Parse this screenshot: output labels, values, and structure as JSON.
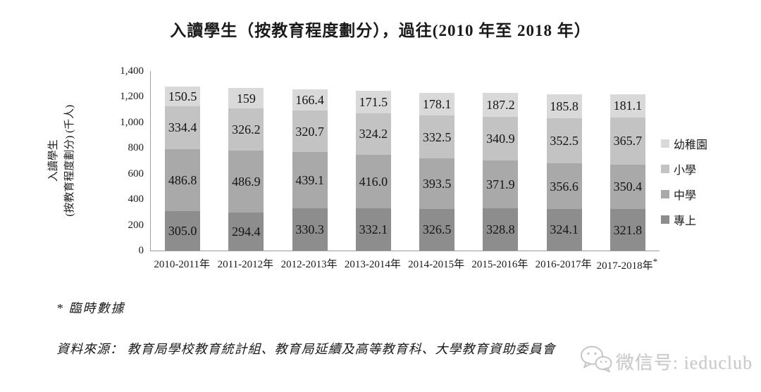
{
  "chart_data": {
    "type": "bar",
    "stacked": true,
    "title": "入讀學生（按教育程度劃分），過往(2010 年至 2018 年）",
    "ylabel": [
      "入讀學生",
      "(按教育程度劃分) (千人)"
    ],
    "ylim": [
      0,
      1400
    ],
    "grid": false,
    "yticks": [
      "0",
      "200",
      "400",
      "600",
      "800",
      "1,000",
      "1,200",
      "1,400"
    ],
    "categories": [
      "2010-2011年",
      "2011-2012年",
      "2012-2013年",
      "2013-2014年",
      "2014-2015年",
      "2015-2016年",
      "2016-2017年",
      "2017-2018年"
    ],
    "category_note": {
      "index": 7,
      "mark": "*"
    },
    "series": [
      {
        "name": "專上",
        "color": "#8d8d8d",
        "values": [
          "305.0",
          "294.4",
          "330.3",
          "332.1",
          "326.5",
          "328.8",
          "324.1",
          "321.8"
        ]
      },
      {
        "name": "中學",
        "color": "#a9a9a9",
        "values": [
          "486.8",
          "486.9",
          "439.1",
          "416.0",
          "393.5",
          "371.9",
          "356.6",
          "350.4"
        ]
      },
      {
        "name": "小學",
        "color": "#c3c3c3",
        "values": [
          "334.4",
          "326.2",
          "320.7",
          "324.2",
          "332.5",
          "340.9",
          "352.5",
          "365.7"
        ]
      },
      {
        "name": "幼稚園",
        "color": "#d9d9d9",
        "values": [
          "150.5",
          "159",
          "166.4",
          "171.5",
          "178.1",
          "187.2",
          "185.8",
          "181.1"
        ]
      }
    ],
    "legend": [
      "幼稚園",
      "小學",
      "中學",
      "專上"
    ],
    "legend_position": "right"
  },
  "notes": {
    "provisional": "* 臨時數據",
    "source": "資料來源： 教育局學校教育統計組、教育局延續及高等教育科、大學教育資助委員會"
  },
  "watermark": {
    "icon": "wechat-icon",
    "text": "微信号: ieduclub"
  }
}
